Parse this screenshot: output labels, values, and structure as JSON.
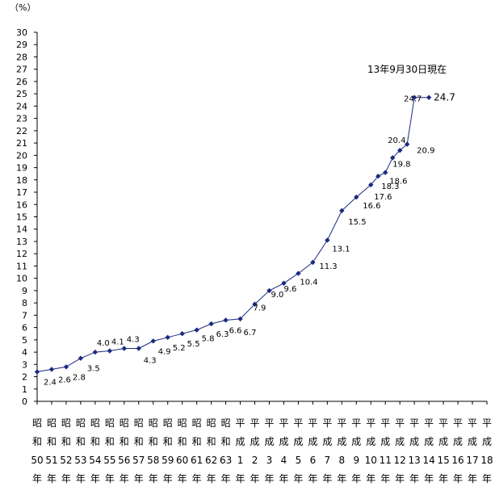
{
  "chart_data": {
    "type": "line",
    "unit_label": "（%）",
    "note": "13年9月30日現在",
    "y_ticks": [
      "0",
      "1",
      "2",
      "3",
      "4",
      "5",
      "6",
      "7",
      "8",
      "9",
      "10",
      "11",
      "12",
      "13",
      "14",
      "15",
      "16",
      "17",
      "18",
      "19",
      "20",
      "21",
      "22",
      "23",
      "24",
      "25",
      "26",
      "27",
      "28",
      "29",
      "30"
    ],
    "ylim": [
      0,
      30
    ],
    "x_labels": [
      [
        "昭",
        "和",
        "50",
        "年"
      ],
      [
        "昭",
        "和",
        "51",
        "年"
      ],
      [
        "昭",
        "和",
        "52",
        "年"
      ],
      [
        "昭",
        "和",
        "53",
        "年"
      ],
      [
        "昭",
        "和",
        "54",
        "年"
      ],
      [
        "昭",
        "和",
        "55",
        "年"
      ],
      [
        "昭",
        "和",
        "56",
        "年"
      ],
      [
        "昭",
        "和",
        "57",
        "年"
      ],
      [
        "昭",
        "和",
        "58",
        "年"
      ],
      [
        "昭",
        "和",
        "59",
        "年"
      ],
      [
        "昭",
        "和",
        "60",
        "年"
      ],
      [
        "昭",
        "和",
        "61",
        "年"
      ],
      [
        "昭",
        "和",
        "62",
        "年"
      ],
      [
        "昭",
        "和",
        "63",
        "年"
      ],
      [
        "平",
        "成",
        "1",
        "年"
      ],
      [
        "平",
        "成",
        "2",
        "年"
      ],
      [
        "平",
        "成",
        "3",
        "年"
      ],
      [
        "平",
        "成",
        "4",
        "年"
      ],
      [
        "平",
        "成",
        "5",
        "年"
      ],
      [
        "平",
        "成",
        "6",
        "年"
      ],
      [
        "平",
        "成",
        "7",
        "年"
      ],
      [
        "平",
        "成",
        "8",
        "年"
      ],
      [
        "平",
        "成",
        "9",
        "年"
      ],
      [
        "平",
        "成",
        "10",
        "年"
      ],
      [
        "平",
        "成",
        "11",
        "年"
      ],
      [
        "平",
        "成",
        "12",
        "年"
      ],
      [
        "平",
        "成",
        "13",
        "年"
      ],
      [
        "平",
        "成",
        "14",
        "年"
      ],
      [
        "平",
        "成",
        "15",
        "年"
      ],
      [
        "平",
        "成",
        "16",
        "年"
      ],
      [
        "平",
        "成",
        "17",
        "年"
      ],
      [
        "平",
        "成",
        "18",
        "年"
      ]
    ],
    "points": [
      {
        "x": 0,
        "y": 2.4,
        "label": "2.4"
      },
      {
        "x": 1,
        "y": 2.6,
        "label": "2.6"
      },
      {
        "x": 2,
        "y": 2.8,
        "label": "2.8"
      },
      {
        "x": 3,
        "y": 3.5,
        "label": "3.5"
      },
      {
        "x": 4,
        "y": 4.0,
        "label": "4.0"
      },
      {
        "x": 5,
        "y": 4.1,
        "label": "4.1"
      },
      {
        "x": 6,
        "y": 4.3,
        "label": "4.3"
      },
      {
        "x": 7,
        "y": 4.3,
        "label": "4.3"
      },
      {
        "x": 8,
        "y": 4.9,
        "label": "4.9"
      },
      {
        "x": 9,
        "y": 5.2,
        "label": "5.2"
      },
      {
        "x": 10,
        "y": 5.5,
        "label": "5.5"
      },
      {
        "x": 11,
        "y": 5.8,
        "label": "5.8"
      },
      {
        "x": 12,
        "y": 6.3,
        "label": "6.3"
      },
      {
        "x": 13,
        "y": 6.6,
        "label": "6.6"
      },
      {
        "x": 14,
        "y": 6.7,
        "label": "6.7"
      },
      {
        "x": 15,
        "y": 7.9,
        "label": "7.9"
      },
      {
        "x": 16,
        "y": 9.0,
        "label": "9.0"
      },
      {
        "x": 17,
        "y": 9.6,
        "label": "9.6"
      },
      {
        "x": 18,
        "y": 10.4,
        "label": "10.4"
      },
      {
        "x": 19,
        "y": 11.3,
        "label": "11.3"
      },
      {
        "x": 20,
        "y": 13.1,
        "label": "13.1"
      },
      {
        "x": 21,
        "y": 15.5,
        "label": "15.5"
      },
      {
        "x": 22,
        "y": 16.6,
        "label": "16.6"
      },
      {
        "x": 23,
        "y": 17.6,
        "label": "17.6"
      },
      {
        "x": 23.5,
        "y": 18.3,
        "label": "18.3"
      },
      {
        "x": 24,
        "y": 18.6,
        "label": "18.6"
      },
      {
        "x": 24.5,
        "y": 19.8,
        "label": "19.8"
      },
      {
        "x": 25,
        "y": 20.4,
        "label": "20.4"
      },
      {
        "x": 25.5,
        "y": 20.9,
        "label": "20.9"
      },
      {
        "x": 26,
        "y": 24.7,
        "label": "24.7"
      },
      {
        "x": 27,
        "y": 24.7,
        "label": "24.7"
      }
    ]
  }
}
